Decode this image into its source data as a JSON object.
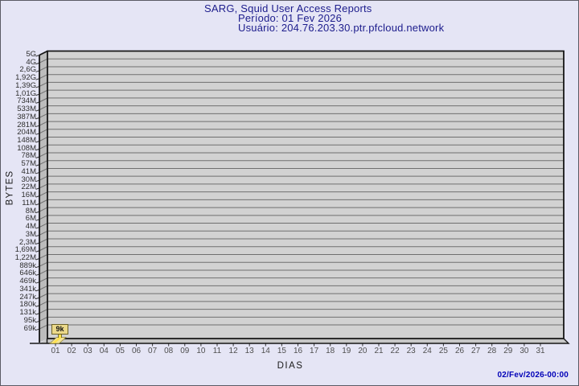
{
  "header": {
    "title": "SARG, Squid User Access Reports",
    "period": "Período: 01 Fev 2026",
    "user": "Usuário: 204.76.203.30.ptr.pfcloud.network"
  },
  "footer": {
    "generated": "02/Fev/2026-00:00"
  },
  "colors": {
    "background": "#e5e5f5",
    "title_text": "#1c1c8c",
    "timestamp_text": "#0000b8",
    "plot_face": "#d2d2d2",
    "plot_wall": "#bcbcbc",
    "plot_floor": "#c6c6c6",
    "gridline": "#6f6f6f",
    "plot_edge": "#161616",
    "bar_fill": "#f1e39a",
    "bar_highlight": "#ffe14d",
    "callout_bg": "#ebd98a",
    "callout_border": "#6b6126"
  },
  "chart_data": {
    "type": "bar",
    "style": "3d",
    "title": "SARG, Squid User Access Reports",
    "subtitle_period": "Período: 01 Fev 2026",
    "subtitle_user": "Usuário: 204.76.203.30.ptr.pfcloud.network",
    "xlabel": "DIAS",
    "ylabel": "BYTES",
    "grid": true,
    "legend": null,
    "y_scale": "logarithmic, ticks listed top to bottom (5G down to 69k)",
    "y_tick_labels": [
      "5G",
      "4G",
      "2,6G",
      "1,92G",
      "1,39G",
      "1,01G",
      "734M",
      "533M",
      "387M",
      "281M",
      "204M",
      "148M",
      "108M",
      "78M",
      "57M",
      "41M",
      "30M",
      "22M",
      "16M",
      "11M",
      "8M",
      "6M",
      "4M",
      "3M",
      "2,3M",
      "1,69M",
      "1,22M",
      "889k",
      "646k",
      "469k",
      "341k",
      "247k",
      "180k",
      "131k",
      "95k",
      "69k"
    ],
    "x_tick_labels": [
      "01",
      "02",
      "03",
      "04",
      "05",
      "06",
      "07",
      "08",
      "09",
      "10",
      "11",
      "12",
      "13",
      "14",
      "15",
      "16",
      "17",
      "18",
      "19",
      "20",
      "21",
      "22",
      "23",
      "24",
      "25",
      "26",
      "27",
      "28",
      "29",
      "30",
      "31"
    ],
    "categories": [
      "01",
      "02",
      "03",
      "04",
      "05",
      "06",
      "07",
      "08",
      "09",
      "10",
      "11",
      "12",
      "13",
      "14",
      "15",
      "16",
      "17",
      "18",
      "19",
      "20",
      "21",
      "22",
      "23",
      "24",
      "25",
      "26",
      "27",
      "28",
      "29",
      "30",
      "31"
    ],
    "values_bytes": [
      9000,
      0,
      0,
      0,
      0,
      0,
      0,
      0,
      0,
      0,
      0,
      0,
      0,
      0,
      0,
      0,
      0,
      0,
      0,
      0,
      0,
      0,
      0,
      0,
      0,
      0,
      0,
      0,
      0,
      0,
      0
    ],
    "bars": [
      {
        "day": "01",
        "value_label": "9k",
        "approx_bytes": 9000
      }
    ]
  }
}
